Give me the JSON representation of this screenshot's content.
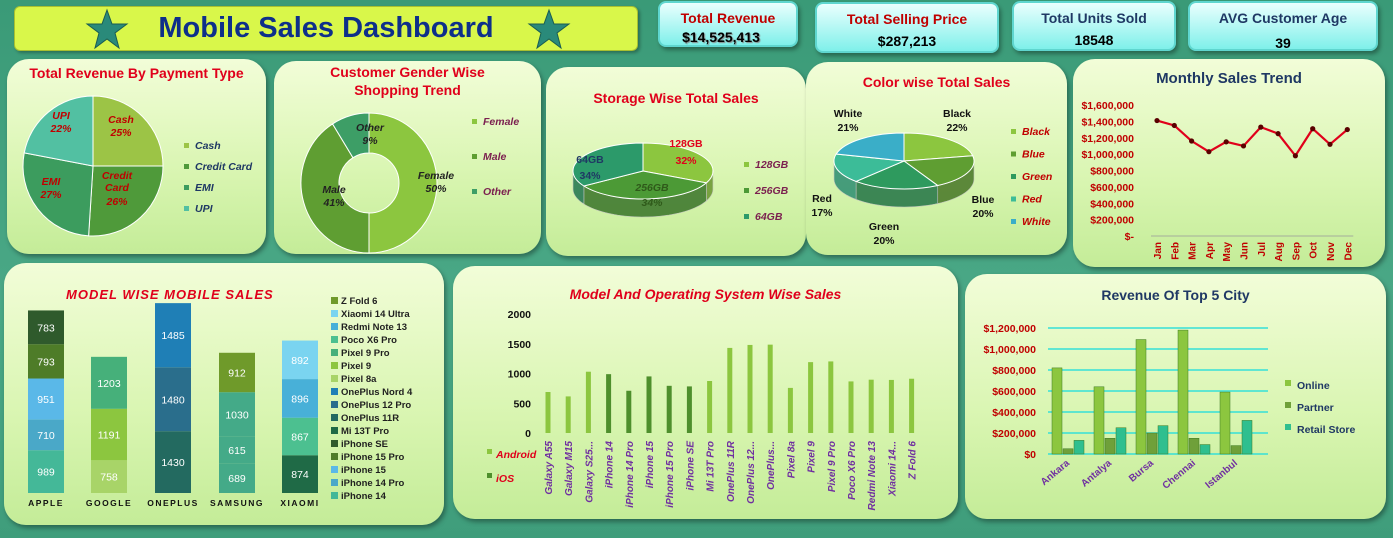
{
  "dashboard": {
    "title": "Mobile Sales Dashboard"
  },
  "kpis": [
    {
      "label": "Total Revenue",
      "value": "$14,525,413"
    },
    {
      "label": "Total Selling Price",
      "value": "$287,213"
    },
    {
      "label": "Total Units Sold",
      "value": "18548"
    },
    {
      "label": "AVG Customer Age",
      "value": "39"
    }
  ],
  "colors": {
    "background": "#3f9d7b",
    "panel": "#d8f5b0",
    "title_bar": "#d9f74a",
    "title_text": "#0e2f8a",
    "chart_title_red": "#e0001b",
    "chart_title_navy": "#1f3864",
    "line_red": "#e0001b"
  },
  "chart_data": [
    {
      "id": "payment",
      "type": "pie",
      "title": "Total Revenue By Payment Type",
      "categories": [
        "Cash",
        "Credit Card",
        "EMI",
        "UPI"
      ],
      "slice_labels": [
        "Cash",
        "Credit\nCard",
        "EMI",
        "UPI"
      ],
      "values": [
        25,
        26,
        27,
        22
      ],
      "value_labels": [
        "25%",
        "26%",
        "27%",
        "22%"
      ],
      "colors": [
        "#9cc446",
        "#4f9a3a",
        "#3c9c5e",
        "#52c0a2"
      ],
      "legend": "right"
    },
    {
      "id": "gender",
      "type": "pie",
      "title": "Customer Gender Wise Shopping Trend",
      "categories": [
        "Female",
        "Male",
        "Other"
      ],
      "values": [
        50,
        41,
        9
      ],
      "value_labels": [
        "50%",
        "41%",
        "9%"
      ],
      "colors": [
        "#8cc63f",
        "#5f9e32",
        "#3d9e66"
      ],
      "legend": "right"
    },
    {
      "id": "storage",
      "type": "pie",
      "title": "Storage Wise Total Sales",
      "categories": [
        "128GB",
        "256GB",
        "64GB"
      ],
      "values": [
        32,
        34,
        34
      ],
      "value_labels": [
        "32%",
        "34%",
        "34%"
      ],
      "colors": [
        "#8cc63f",
        "#4c9a36",
        "#2c9a6a"
      ],
      "legend": "right"
    },
    {
      "id": "color",
      "type": "pie",
      "title": "Color wise Total Sales",
      "categories": [
        "Black",
        "Blue",
        "Green",
        "Red",
        "White"
      ],
      "values": [
        22,
        20,
        20,
        17,
        21
      ],
      "value_labels": [
        "22%",
        "20%",
        "20%",
        "17%",
        "21%"
      ],
      "colors": [
        "#8cc63f",
        "#5f9e32",
        "#2e9a5e",
        "#3cbc98",
        "#3aaec8"
      ],
      "legend": "right"
    },
    {
      "id": "monthly",
      "type": "line",
      "title": "Monthly Sales Trend",
      "categories": [
        "Jan",
        "Feb",
        "Mar",
        "Apr",
        "May",
        "Jun",
        "Jul",
        "Aug",
        "Sep",
        "Oct",
        "Nov",
        "Dec"
      ],
      "values": [
        1410000,
        1350000,
        1160000,
        1030000,
        1150000,
        1100000,
        1330000,
        1250000,
        980000,
        1310000,
        1120000,
        1300000
      ],
      "y_ticks": [
        "$1,600,000",
        "$1,400,000",
        "$1,200,000",
        "$1,000,000",
        "$800,000",
        "$600,000",
        "$400,000",
        "$200,000",
        "$-"
      ],
      "ylim": [
        0,
        1600000
      ],
      "grid": false
    },
    {
      "id": "model",
      "type": "bar",
      "stacked": true,
      "title": "MODEL WISE MOBILE SALES",
      "categories": [
        "APPLE",
        "GOOGLE",
        "ONEPLUS",
        "SAMSUNG",
        "XIAOMI"
      ],
      "segments": [
        [
          {
            "model": "iPhone 14",
            "v": 989
          },
          {
            "model": "iPhone 14 Pro",
            "v": 710
          },
          {
            "model": "iPhone 15",
            "v": 951
          },
          {
            "model": "iPhone 15 Pro",
            "v": 793
          },
          {
            "model": "iPhone SE",
            "v": 783
          }
        ],
        [
          {
            "model": "Pixel 8a",
            "v": 758
          },
          {
            "model": "Pixel 9",
            "v": 1191
          },
          {
            "model": "Pixel 9 Pro",
            "v": 1203
          }
        ],
        [
          {
            "model": "OnePlus 11R",
            "v": 1430
          },
          {
            "model": "OnePlus 12 Pro",
            "v": 1480
          },
          {
            "model": "OnePlus Nord 4",
            "v": 1485
          }
        ],
        [
          {
            "model": "Galaxy A55",
            "v": 689
          },
          {
            "model": "Galaxy M15",
            "v": 615
          },
          {
            "model": "Galaxy S25 Ultra",
            "v": 1030
          },
          {
            "model": "Z Fold 6",
            "v": 912
          }
        ],
        [
          {
            "model": "Mi 13T Pro",
            "v": 874
          },
          {
            "model": "Poco X6 Pro",
            "v": 867
          },
          {
            "model": "Redmi Note 13",
            "v": 896
          },
          {
            "model": "Xiaomi 14 Ultra",
            "v": 892
          }
        ]
      ],
      "legend_items": [
        "Z Fold 6",
        "Xiaomi 14 Ultra",
        "Redmi Note 13",
        "Poco X6 Pro",
        "Pixel 9 Pro",
        "Pixel 9",
        "Pixel 8a",
        "OnePlus Nord 4",
        "OnePlus 12 Pro",
        "OnePlus 11R",
        "Mi 13T Pro",
        "iPhone SE",
        "iPhone 15 Pro",
        "iPhone 15",
        "iPhone 14 Pro",
        "iPhone 14"
      ],
      "legend_colors": [
        "#6f9a2a",
        "#7ad4f0",
        "#48b0d8",
        "#4cc090",
        "#46b07a",
        "#8cc63f",
        "#a8d468",
        "#1f7fb6",
        "#2a6e8c",
        "#236a60",
        "#1f6a46",
        "#2f5a2c",
        "#4e7c28",
        "#5ab8e8",
        "#4aa8c8",
        "#44b898"
      ],
      "ylim": [
        0,
        4500
      ],
      "legend": "right"
    },
    {
      "id": "os",
      "type": "bar",
      "title": "Model And Operating System Wise Sales",
      "categories": [
        "Galaxy A55",
        "Galaxy M15",
        "Galaxy S25...",
        "iPhone 14",
        "iPhone 14 Pro",
        "iPhone 15",
        "iPhone 15 Pro",
        "iPhone SE",
        "Mi 13T Pro",
        "OnePlus 11R",
        "OnePlus 12...",
        "OnePlus...",
        "Pixel 8a",
        "Pixel 9",
        "Pixel 9 Pro",
        "Poco X6 Pro",
        "Redmi Note 13",
        "Xiaomi 14...",
        "Z Fold 6"
      ],
      "series": [
        {
          "name": "Android",
          "values": [
            689,
            615,
            1030,
            0,
            0,
            0,
            0,
            0,
            874,
            1430,
            1480,
            1485,
            758,
            1191,
            1203,
            867,
            896,
            892,
            912
          ]
        },
        {
          "name": "iOS",
          "values": [
            0,
            0,
            0,
            989,
            710,
            951,
            793,
            783,
            0,
            0,
            0,
            0,
            0,
            0,
            0,
            0,
            0,
            0,
            0
          ]
        }
      ],
      "y_ticks": [
        "2000",
        "1500",
        "1000",
        "500",
        "0"
      ],
      "ylim": [
        0,
        2000
      ],
      "legend": "bottom-left"
    },
    {
      "id": "city",
      "type": "bar",
      "title": "Revenue Of Top 5 City",
      "categories": [
        "Ankara",
        "Antalya",
        "Bursa",
        "Chennai",
        "Istanbul"
      ],
      "series": [
        {
          "name": "Online",
          "values": [
            820000,
            640000,
            1090000,
            1180000,
            590000
          ]
        },
        {
          "name": "Partner",
          "values": [
            50000,
            150000,
            200000,
            150000,
            80000
          ]
        },
        {
          "name": "Retail Store",
          "values": [
            130000,
            250000,
            270000,
            90000,
            320000
          ]
        }
      ],
      "y_ticks": [
        "$1,200,000",
        "$1,000,000",
        "$800,000",
        "$600,000",
        "$400,000",
        "$200,000",
        "$0"
      ],
      "ylim": [
        0,
        1200000
      ],
      "grid": true,
      "legend": "right"
    }
  ]
}
